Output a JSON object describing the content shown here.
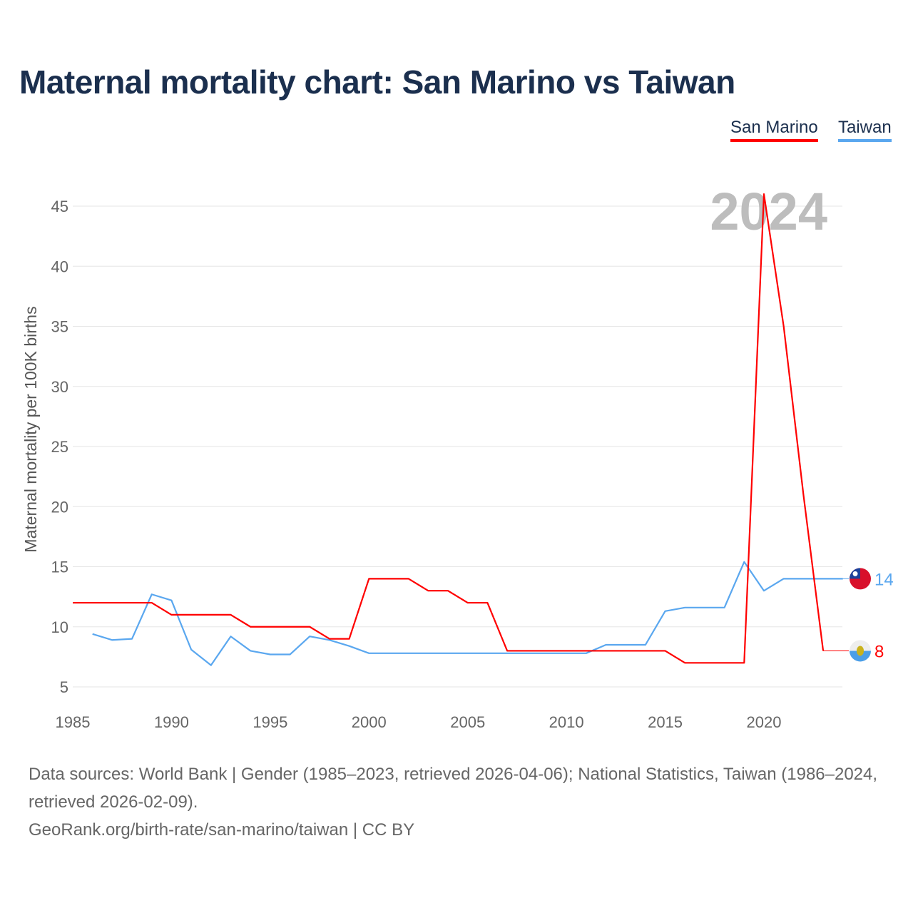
{
  "title": "Maternal mortality chart: San Marino vs Taiwan",
  "legend": [
    "San Marino",
    "Taiwan"
  ],
  "year_overlay": "2024",
  "footer": {
    "sources": "Data sources: World Bank | Gender (1985–2023, retrieved 2026-04-06); National Statistics, Taiwan (1986–2024, retrieved 2026-02-09).",
    "credit": "GeoRank.org/birth-rate/san-marino/taiwan | CC BY"
  },
  "chart_data": {
    "type": "line",
    "title": "Maternal mortality chart: San Marino vs Taiwan",
    "xlabel": "",
    "ylabel": "Maternal mortality per 100K births",
    "xlim": [
      1985,
      2024
    ],
    "ylim": [
      3,
      47
    ],
    "xticks": [
      1985,
      1990,
      1995,
      2000,
      2005,
      2010,
      2015,
      2020
    ],
    "yticks": [
      5,
      10,
      15,
      20,
      25,
      30,
      35,
      40,
      45
    ],
    "grid": true,
    "legend_position": "top-right",
    "series": [
      {
        "name": "San Marino",
        "color": "#ff0000",
        "end_label": "8",
        "x": [
          1985,
          1986,
          1987,
          1988,
          1989,
          1990,
          1991,
          1992,
          1993,
          1994,
          1995,
          1996,
          1997,
          1998,
          1999,
          2000,
          2001,
          2002,
          2003,
          2004,
          2005,
          2006,
          2007,
          2008,
          2009,
          2010,
          2011,
          2012,
          2013,
          2014,
          2015,
          2016,
          2017,
          2018,
          2019,
          2020,
          2021,
          2022,
          2023
        ],
        "values": [
          12,
          12,
          12,
          12,
          12,
          11,
          11,
          11,
          11,
          10,
          10,
          10,
          10,
          9,
          9,
          14,
          14,
          14,
          13,
          13,
          12,
          12,
          8,
          8,
          8,
          8,
          8,
          8,
          8,
          8,
          8,
          7,
          7,
          7,
          7,
          46,
          35,
          21,
          8
        ]
      },
      {
        "name": "Taiwan",
        "color": "#5aa7ef",
        "end_label": "14",
        "x": [
          1986,
          1987,
          1988,
          1989,
          1990,
          1991,
          1992,
          1993,
          1994,
          1995,
          1996,
          1997,
          1998,
          1999,
          2000,
          2001,
          2002,
          2003,
          2004,
          2005,
          2006,
          2007,
          2008,
          2009,
          2010,
          2011,
          2012,
          2013,
          2014,
          2015,
          2016,
          2017,
          2018,
          2019,
          2020,
          2021,
          2022,
          2023,
          2024
        ],
        "values": [
          9.4,
          8.9,
          9.0,
          12.7,
          12.2,
          8.1,
          6.8,
          9.2,
          8.0,
          7.7,
          7.7,
          9.2,
          8.9,
          8.4,
          7.8,
          7.8,
          7.8,
          7.8,
          7.8,
          7.8,
          7.8,
          7.8,
          7.8,
          7.8,
          7.8,
          7.8,
          8.5,
          8.5,
          8.5,
          11.3,
          11.6,
          11.6,
          11.6,
          15.4,
          13.0,
          14,
          14,
          14,
          14
        ]
      }
    ]
  }
}
